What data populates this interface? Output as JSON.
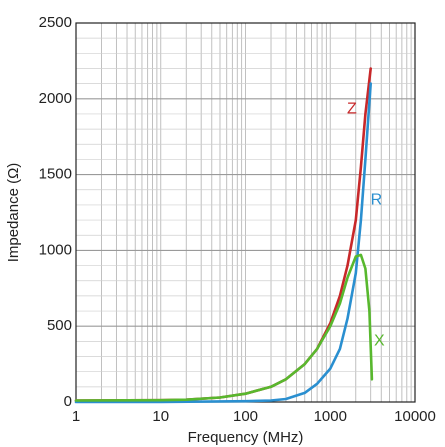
{
  "chart_data": {
    "type": "line",
    "title": "",
    "xlabel": "Frequency (MHz)",
    "ylabel": "Impedance (Ω)",
    "x_scale": "log",
    "xlim": [
      1,
      10000
    ],
    "ylim": [
      0,
      2500
    ],
    "x_ticks": [
      "1",
      "10",
      "100",
      "1000",
      "10000"
    ],
    "y_ticks": [
      "0",
      "500",
      "1000",
      "1500",
      "2000",
      "2500"
    ],
    "grid": true,
    "legend": "none",
    "series": [
      {
        "name": "Z",
        "color": "#c8282a",
        "x": [
          1,
          10,
          20,
          50,
          100,
          200,
          300,
          500,
          700,
          1000,
          1300,
          1600,
          2000,
          2300,
          2600,
          3000
        ],
        "y": [
          10,
          12,
          15,
          30,
          55,
          100,
          150,
          250,
          350,
          520,
          700,
          900,
          1200,
          1550,
          1900,
          2200
        ]
      },
      {
        "name": "R",
        "color": "#2a8fd0",
        "x": [
          1,
          10,
          100,
          200,
          300,
          500,
          700,
          1000,
          1300,
          1600,
          2000,
          2300,
          2600,
          3000
        ],
        "y": [
          0,
          0,
          5,
          10,
          20,
          60,
          120,
          220,
          350,
          550,
          850,
          1200,
          1600,
          2100
        ]
      },
      {
        "name": "X",
        "color": "#58b82e",
        "x": [
          1,
          10,
          20,
          50,
          100,
          200,
          300,
          500,
          700,
          1000,
          1300,
          1600,
          2000,
          2300,
          2600,
          2900,
          3100
        ],
        "y": [
          10,
          12,
          15,
          30,
          55,
          100,
          150,
          250,
          350,
          500,
          650,
          820,
          960,
          970,
          880,
          600,
          150
        ]
      }
    ],
    "annotations": [
      {
        "text": "Z",
        "color": "#c8282a",
        "x": 1800,
        "y": 1930
      },
      {
        "text": "R",
        "color": "#2a8fd0",
        "x": 3500,
        "y": 1330
      },
      {
        "text": "X",
        "color": "#58b82e",
        "x": 3800,
        "y": 400
      }
    ]
  }
}
